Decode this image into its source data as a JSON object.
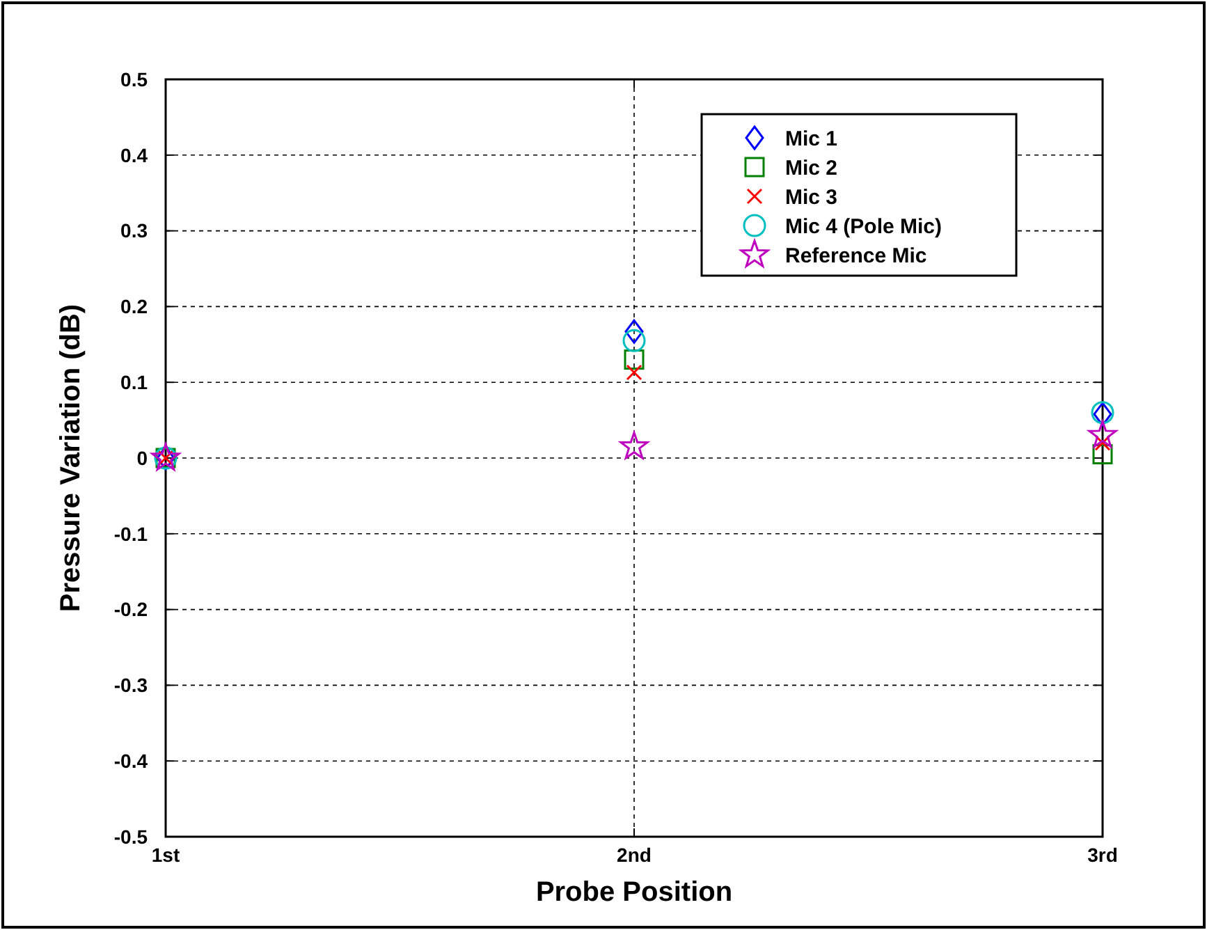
{
  "chart_data": {
    "type": "scatter",
    "xlabel": "Probe Position",
    "ylabel": "Pressure Variation (dB)",
    "categories": [
      "1st",
      "2nd",
      "3rd"
    ],
    "series": [
      {
        "name": "Mic 1",
        "color": "#0000ff",
        "marker": "diamond",
        "values": [
          0,
          0.167,
          0.058
        ]
      },
      {
        "name": "Mic 2",
        "color": "#008000",
        "marker": "square",
        "values": [
          0,
          0.13,
          0.005
        ]
      },
      {
        "name": "Mic 3",
        "color": "#ff0000",
        "marker": "cross",
        "values": [
          0,
          0.113,
          0.02
        ]
      },
      {
        "name": "Mic 4 (Pole Mic)",
        "color": "#00bfbf",
        "marker": "circle",
        "values": [
          0,
          0.155,
          0.06
        ]
      },
      {
        "name": "Reference Mic",
        "color": "#bf00bf",
        "marker": "star",
        "values": [
          0,
          0.015,
          0.03
        ]
      }
    ],
    "ylim": [
      -0.5,
      0.5
    ],
    "yticks": [
      -0.5,
      -0.4,
      -0.3,
      -0.2,
      -0.1,
      0,
      0.1,
      0.2,
      0.3,
      0.4,
      0.5
    ],
    "grid": true,
    "legend": "top right"
  }
}
